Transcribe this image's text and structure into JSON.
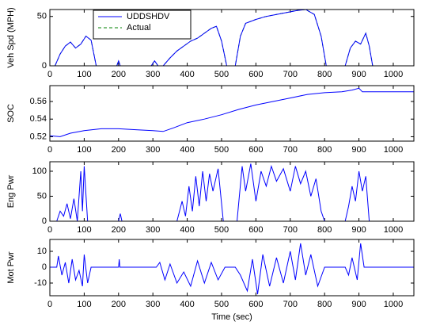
{
  "chart_data": [
    {
      "type": "line",
      "ylabel": "Veh Spd (MPH)",
      "x": [
        0,
        15,
        30,
        45,
        60,
        75,
        90,
        105,
        120,
        135,
        150,
        195,
        200,
        205,
        295,
        305,
        315,
        330,
        350,
        370,
        390,
        410,
        430,
        450,
        470,
        485,
        500,
        515,
        540,
        555,
        570,
        600,
        630,
        660,
        690,
        720,
        745,
        770,
        790,
        805,
        860,
        875,
        890,
        905,
        920,
        930,
        940,
        1000,
        1060
      ],
      "series": [
        {
          "name": "Actual",
          "color": "#008000",
          "dash": true,
          "values": [
            0,
            0,
            12,
            20,
            24,
            18,
            22,
            30,
            26,
            0,
            0,
            0,
            5,
            0,
            0,
            5,
            0,
            0,
            8,
            15,
            20,
            25,
            28,
            33,
            38,
            40,
            25,
            0,
            0,
            30,
            43,
            47,
            50,
            52,
            54,
            56,
            57,
            52,
            30,
            0,
            0,
            18,
            25,
            22,
            33,
            20,
            0,
            0,
            0
          ]
        },
        {
          "name": "UDDSHDV",
          "color": "#0000ff",
          "values": [
            0,
            0,
            12,
            20,
            24,
            18,
            22,
            30,
            26,
            0,
            0,
            0,
            5,
            0,
            0,
            5,
            0,
            0,
            8,
            15,
            20,
            25,
            28,
            33,
            38,
            40,
            25,
            0,
            0,
            30,
            43,
            47,
            50,
            52,
            54,
            56,
            57,
            52,
            30,
            0,
            0,
            18,
            25,
            22,
            33,
            20,
            0,
            0,
            0
          ]
        }
      ],
      "legend": "top-left",
      "xlim": [
        0,
        1060
      ],
      "ylim": [
        0,
        57
      ],
      "xticks": [
        0,
        100,
        200,
        300,
        400,
        500,
        600,
        700,
        800,
        900,
        1000
      ],
      "yticks": [
        0,
        50
      ]
    },
    {
      "type": "line",
      "ylabel": "SOC",
      "x": [
        0,
        30,
        60,
        100,
        150,
        200,
        250,
        300,
        330,
        360,
        400,
        450,
        500,
        550,
        600,
        650,
        700,
        750,
        800,
        850,
        880,
        900,
        910,
        1060
      ],
      "series": [
        {
          "color": "#0000ff",
          "values": [
            0.521,
            0.52,
            0.524,
            0.527,
            0.529,
            0.529,
            0.528,
            0.527,
            0.526,
            0.53,
            0.536,
            0.54,
            0.545,
            0.551,
            0.556,
            0.56,
            0.564,
            0.568,
            0.57,
            0.571,
            0.573,
            0.575,
            0.571,
            0.571
          ]
        }
      ],
      "xlim": [
        0,
        1060
      ],
      "ylim": [
        0.515,
        0.578
      ],
      "xticks": [
        0,
        100,
        200,
        300,
        400,
        500,
        600,
        700,
        800,
        900,
        1000
      ],
      "yticks": [
        0.52,
        0.54,
        0.56
      ]
    },
    {
      "type": "line",
      "ylabel": "Eng Pwr",
      "x": [
        0,
        20,
        30,
        40,
        50,
        60,
        70,
        80,
        90,
        95,
        100,
        110,
        200,
        205,
        210,
        370,
        385,
        395,
        405,
        415,
        425,
        435,
        445,
        455,
        465,
        475,
        490,
        505,
        545,
        560,
        570,
        585,
        600,
        615,
        630,
        645,
        660,
        680,
        700,
        715,
        730,
        745,
        760,
        775,
        790,
        800,
        860,
        870,
        880,
        890,
        900,
        910,
        920,
        930,
        1060
      ],
      "series": [
        {
          "color": "#0000ff",
          "values": [
            0,
            0,
            20,
            10,
            35,
            5,
            45,
            0,
            100,
            20,
            110,
            0,
            0,
            15,
            0,
            0,
            40,
            10,
            70,
            20,
            90,
            30,
            100,
            40,
            95,
            60,
            105,
            0,
            0,
            110,
            60,
            115,
            40,
            100,
            70,
            110,
            80,
            105,
            60,
            110,
            75,
            100,
            50,
            85,
            20,
            0,
            0,
            30,
            70,
            40,
            100,
            60,
            90,
            0,
            0
          ]
        }
      ],
      "xlim": [
        0,
        1060
      ],
      "ylim": [
        0,
        119
      ],
      "xticks": [
        0,
        100,
        200,
        300,
        400,
        500,
        600,
        700,
        800,
        900,
        1000
      ],
      "yticks": [
        0,
        50,
        100
      ]
    },
    {
      "type": "line",
      "ylabel": "Mot Pwr",
      "xlabel": "Time (sec)",
      "x": [
        0,
        20,
        25,
        35,
        45,
        55,
        65,
        75,
        85,
        95,
        100,
        110,
        120,
        200,
        202,
        204,
        310,
        320,
        335,
        350,
        370,
        390,
        410,
        430,
        450,
        470,
        490,
        510,
        540,
        555,
        575,
        590,
        605,
        620,
        640,
        660,
        680,
        700,
        715,
        730,
        745,
        760,
        780,
        800,
        860,
        870,
        880,
        895,
        905,
        915,
        1060
      ],
      "series": [
        {
          "color": "#0000ff",
          "values": [
            0,
            0,
            7,
            -5,
            3,
            -10,
            5,
            -8,
            -2,
            -12,
            8,
            -10,
            0,
            0,
            5,
            0,
            0,
            3,
            -8,
            2,
            -10,
            -3,
            -12,
            4,
            -10,
            3,
            -8,
            0,
            0,
            -5,
            -15,
            5,
            -17,
            8,
            -12,
            6,
            -10,
            10,
            -8,
            15,
            -5,
            8,
            -12,
            0,
            0,
            -5,
            6,
            -8,
            15,
            0,
            0
          ]
        }
      ],
      "xlim": [
        0,
        1060
      ],
      "ylim": [
        -18,
        17.5
      ],
      "xticks": [
        0,
        100,
        200,
        300,
        400,
        500,
        600,
        700,
        800,
        900,
        1000
      ],
      "yticks": [
        -10,
        0,
        10
      ]
    }
  ]
}
